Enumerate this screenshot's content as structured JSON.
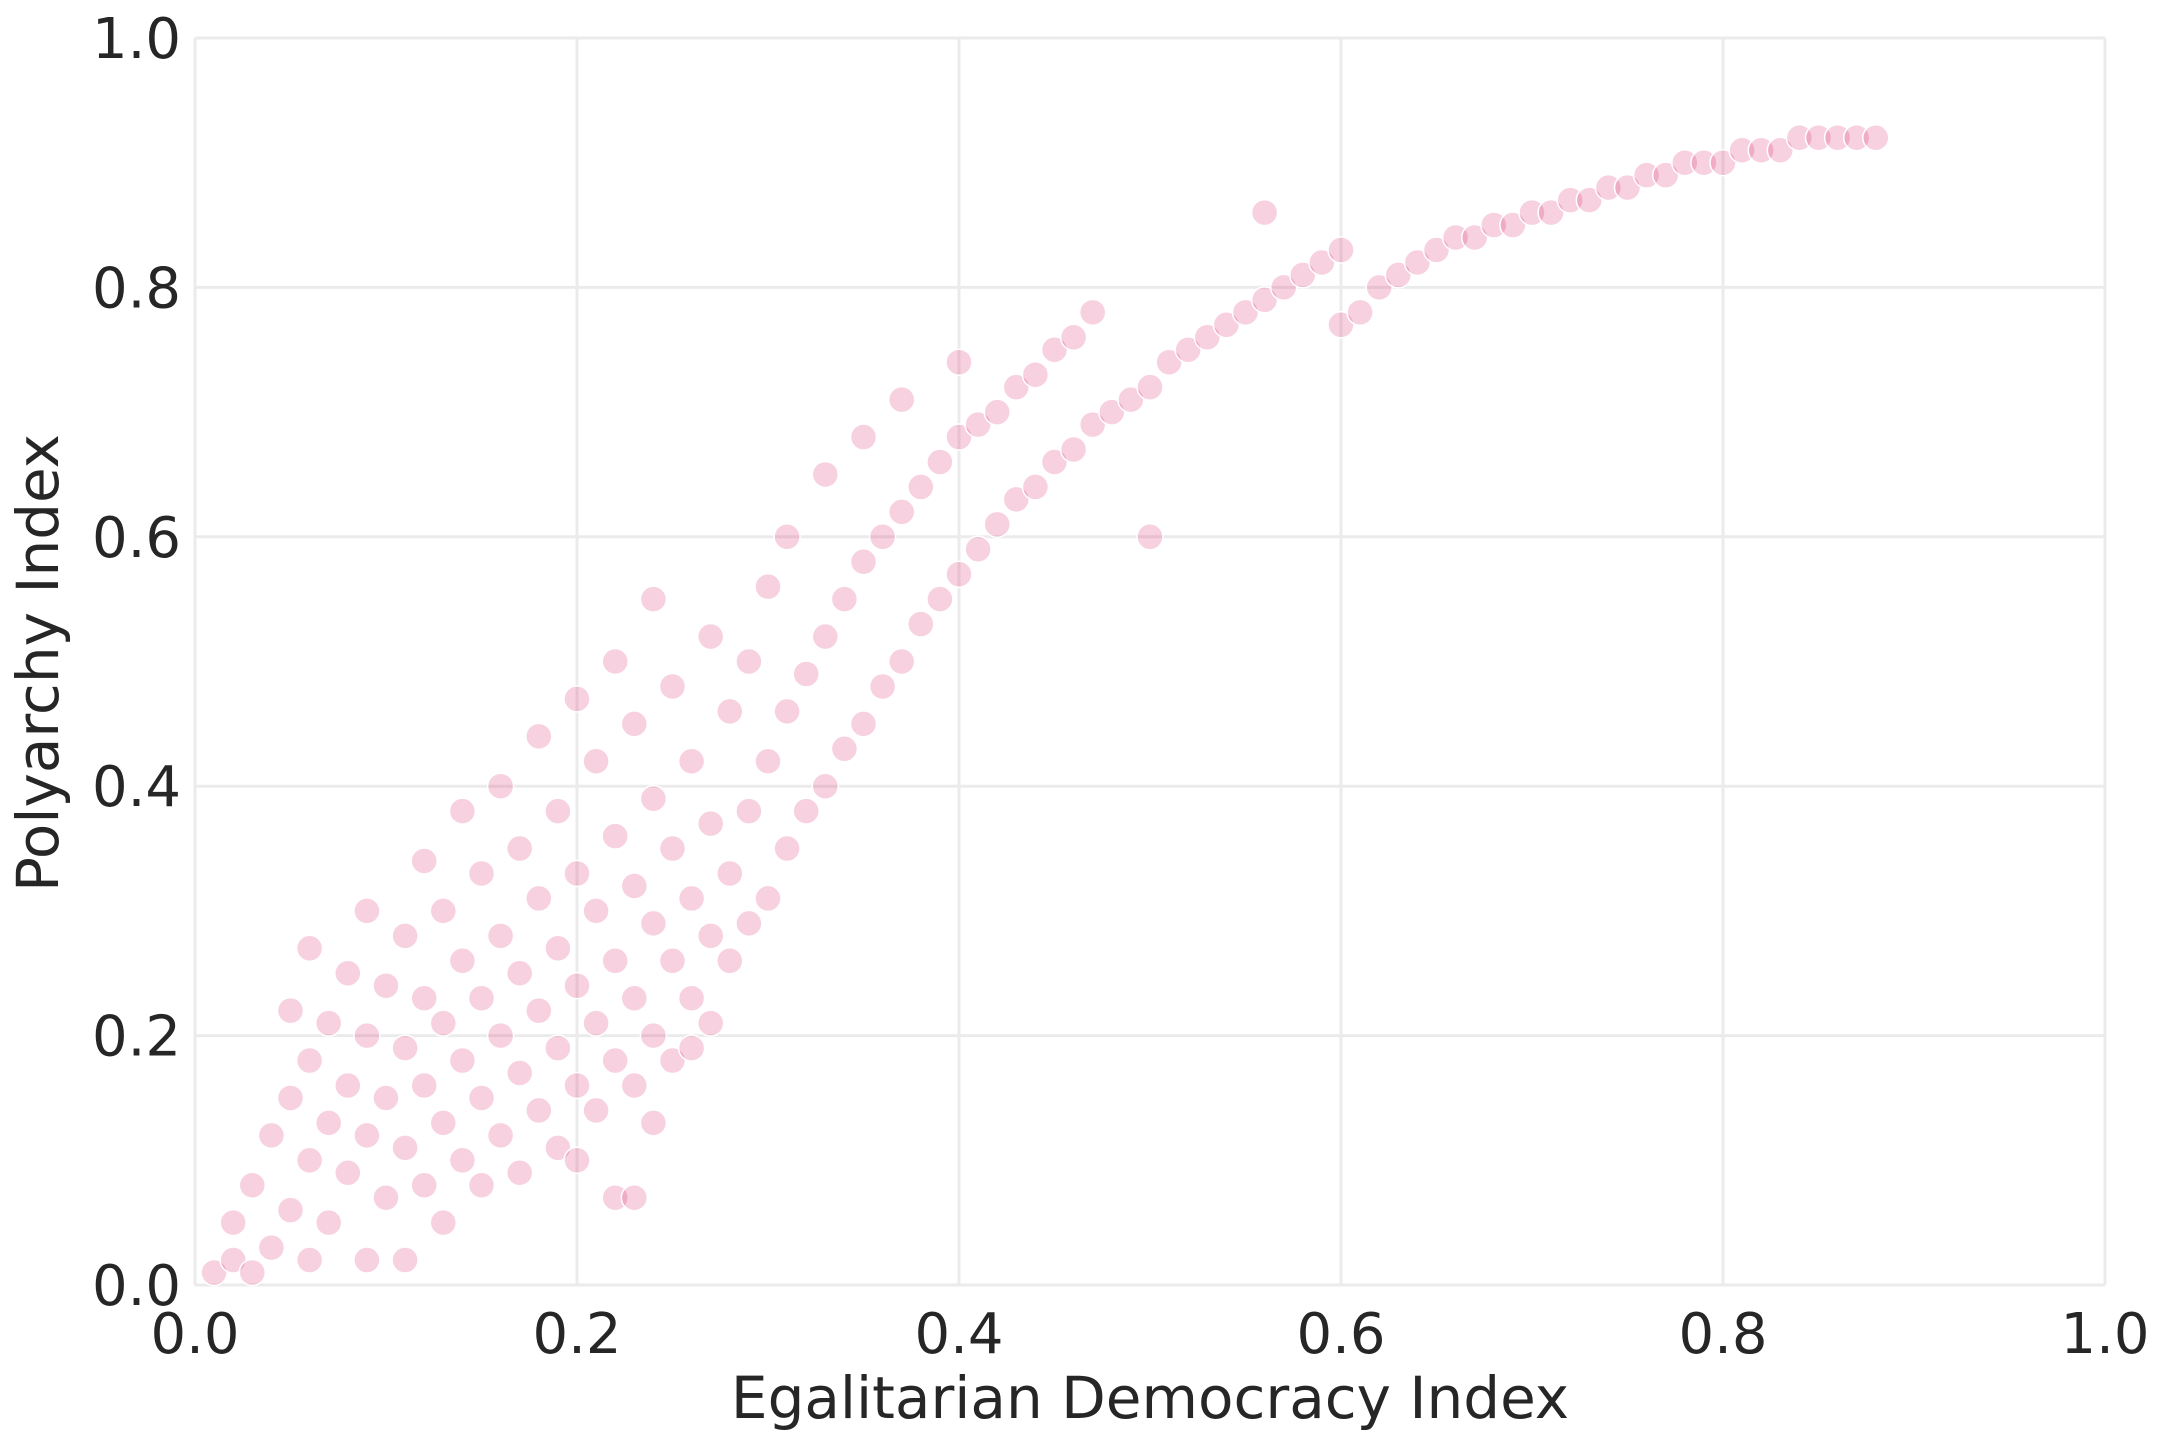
{
  "chart_data": {
    "type": "scatter",
    "title": "",
    "xlabel": "Egalitarian Democracy Index",
    "ylabel": "Polyarchy Index",
    "xlim": [
      0.0,
      1.0
    ],
    "ylim": [
      0.0,
      1.0
    ],
    "xticks": [
      "0.0",
      "0.2",
      "0.4",
      "0.6",
      "0.8",
      "1.0"
    ],
    "yticks": [
      "0.0",
      "0.2",
      "0.4",
      "0.6",
      "0.8",
      "1.0"
    ],
    "grid": true,
    "legend": "none",
    "point_color": "#d81b60",
    "point_opacity": 0.2,
    "series": [
      {
        "points": [
          [
            0.01,
            0.01
          ],
          [
            0.02,
            0.02
          ],
          [
            0.02,
            0.05
          ],
          [
            0.03,
            0.01
          ],
          [
            0.03,
            0.08
          ],
          [
            0.04,
            0.03
          ],
          [
            0.04,
            0.12
          ],
          [
            0.05,
            0.06
          ],
          [
            0.05,
            0.15
          ],
          [
            0.05,
            0.22
          ],
          [
            0.06,
            0.02
          ],
          [
            0.06,
            0.1
          ],
          [
            0.06,
            0.18
          ],
          [
            0.06,
            0.27
          ],
          [
            0.07,
            0.05
          ],
          [
            0.07,
            0.13
          ],
          [
            0.07,
            0.21
          ],
          [
            0.08,
            0.09
          ],
          [
            0.08,
            0.16
          ],
          [
            0.08,
            0.25
          ],
          [
            0.09,
            0.02
          ],
          [
            0.09,
            0.12
          ],
          [
            0.09,
            0.2
          ],
          [
            0.09,
            0.3
          ],
          [
            0.1,
            0.07
          ],
          [
            0.1,
            0.15
          ],
          [
            0.1,
            0.24
          ],
          [
            0.11,
            0.02
          ],
          [
            0.11,
            0.11
          ],
          [
            0.11,
            0.19
          ],
          [
            0.11,
            0.28
          ],
          [
            0.12,
            0.08
          ],
          [
            0.12,
            0.16
          ],
          [
            0.12,
            0.23
          ],
          [
            0.12,
            0.34
          ],
          [
            0.13,
            0.05
          ],
          [
            0.13,
            0.13
          ],
          [
            0.13,
            0.21
          ],
          [
            0.13,
            0.3
          ],
          [
            0.14,
            0.1
          ],
          [
            0.14,
            0.18
          ],
          [
            0.14,
            0.26
          ],
          [
            0.14,
            0.38
          ],
          [
            0.15,
            0.08
          ],
          [
            0.15,
            0.15
          ],
          [
            0.15,
            0.23
          ],
          [
            0.15,
            0.33
          ],
          [
            0.16,
            0.12
          ],
          [
            0.16,
            0.2
          ],
          [
            0.16,
            0.28
          ],
          [
            0.16,
            0.4
          ],
          [
            0.17,
            0.09
          ],
          [
            0.17,
            0.17
          ],
          [
            0.17,
            0.25
          ],
          [
            0.17,
            0.35
          ],
          [
            0.18,
            0.14
          ],
          [
            0.18,
            0.22
          ],
          [
            0.18,
            0.31
          ],
          [
            0.18,
            0.44
          ],
          [
            0.19,
            0.11
          ],
          [
            0.19,
            0.19
          ],
          [
            0.19,
            0.27
          ],
          [
            0.19,
            0.38
          ],
          [
            0.2,
            0.1
          ],
          [
            0.2,
            0.16
          ],
          [
            0.2,
            0.24
          ],
          [
            0.2,
            0.33
          ],
          [
            0.2,
            0.47
          ],
          [
            0.21,
            0.14
          ],
          [
            0.21,
            0.21
          ],
          [
            0.21,
            0.3
          ],
          [
            0.21,
            0.42
          ],
          [
            0.22,
            0.07
          ],
          [
            0.22,
            0.18
          ],
          [
            0.22,
            0.26
          ],
          [
            0.22,
            0.36
          ],
          [
            0.22,
            0.5
          ],
          [
            0.23,
            0.07
          ],
          [
            0.23,
            0.16
          ],
          [
            0.23,
            0.23
          ],
          [
            0.23,
            0.32
          ],
          [
            0.23,
            0.45
          ],
          [
            0.24,
            0.13
          ],
          [
            0.24,
            0.2
          ],
          [
            0.24,
            0.29
          ],
          [
            0.24,
            0.39
          ],
          [
            0.24,
            0.55
          ],
          [
            0.25,
            0.18
          ],
          [
            0.25,
            0.26
          ],
          [
            0.25,
            0.35
          ],
          [
            0.25,
            0.48
          ],
          [
            0.26,
            0.19
          ],
          [
            0.26,
            0.23
          ],
          [
            0.26,
            0.31
          ],
          [
            0.26,
            0.42
          ],
          [
            0.27,
            0.21
          ],
          [
            0.27,
            0.28
          ],
          [
            0.27,
            0.37
          ],
          [
            0.27,
            0.52
          ],
          [
            0.28,
            0.26
          ],
          [
            0.28,
            0.33
          ],
          [
            0.28,
            0.46
          ],
          [
            0.29,
            0.29
          ],
          [
            0.29,
            0.38
          ],
          [
            0.29,
            0.5
          ],
          [
            0.3,
            0.31
          ],
          [
            0.3,
            0.42
          ],
          [
            0.3,
            0.56
          ],
          [
            0.31,
            0.35
          ],
          [
            0.31,
            0.46
          ],
          [
            0.31,
            0.6
          ],
          [
            0.32,
            0.38
          ],
          [
            0.32,
            0.49
          ],
          [
            0.33,
            0.4
          ],
          [
            0.33,
            0.52
          ],
          [
            0.33,
            0.65
          ],
          [
            0.34,
            0.43
          ],
          [
            0.34,
            0.55
          ],
          [
            0.35,
            0.45
          ],
          [
            0.35,
            0.58
          ],
          [
            0.35,
            0.68
          ],
          [
            0.36,
            0.48
          ],
          [
            0.36,
            0.6
          ],
          [
            0.37,
            0.5
          ],
          [
            0.37,
            0.62
          ],
          [
            0.37,
            0.71
          ],
          [
            0.38,
            0.53
          ],
          [
            0.38,
            0.64
          ],
          [
            0.39,
            0.55
          ],
          [
            0.39,
            0.66
          ],
          [
            0.4,
            0.57
          ],
          [
            0.4,
            0.68
          ],
          [
            0.4,
            0.74
          ],
          [
            0.41,
            0.59
          ],
          [
            0.41,
            0.69
          ],
          [
            0.42,
            0.61
          ],
          [
            0.42,
            0.7
          ],
          [
            0.43,
            0.63
          ],
          [
            0.43,
            0.72
          ],
          [
            0.44,
            0.64
          ],
          [
            0.44,
            0.73
          ],
          [
            0.45,
            0.66
          ],
          [
            0.45,
            0.75
          ],
          [
            0.46,
            0.67
          ],
          [
            0.46,
            0.76
          ],
          [
            0.47,
            0.69
          ],
          [
            0.47,
            0.78
          ],
          [
            0.48,
            0.7
          ],
          [
            0.49,
            0.71
          ],
          [
            0.5,
            0.72
          ],
          [
            0.5,
            0.6
          ],
          [
            0.51,
            0.74
          ],
          [
            0.52,
            0.75
          ],
          [
            0.53,
            0.76
          ],
          [
            0.54,
            0.77
          ],
          [
            0.55,
            0.78
          ],
          [
            0.56,
            0.79
          ],
          [
            0.56,
            0.86
          ],
          [
            0.57,
            0.8
          ],
          [
            0.58,
            0.81
          ],
          [
            0.59,
            0.82
          ],
          [
            0.6,
            0.77
          ],
          [
            0.6,
            0.83
          ],
          [
            0.61,
            0.78
          ],
          [
            0.62,
            0.8
          ],
          [
            0.63,
            0.81
          ],
          [
            0.64,
            0.82
          ],
          [
            0.65,
            0.83
          ],
          [
            0.66,
            0.84
          ],
          [
            0.67,
            0.84
          ],
          [
            0.68,
            0.85
          ],
          [
            0.69,
            0.85
          ],
          [
            0.7,
            0.86
          ],
          [
            0.71,
            0.86
          ],
          [
            0.72,
            0.87
          ],
          [
            0.73,
            0.87
          ],
          [
            0.74,
            0.88
          ],
          [
            0.75,
            0.88
          ],
          [
            0.76,
            0.89
          ],
          [
            0.77,
            0.89
          ],
          [
            0.78,
            0.9
          ],
          [
            0.79,
            0.9
          ],
          [
            0.8,
            0.9
          ],
          [
            0.81,
            0.91
          ],
          [
            0.82,
            0.91
          ],
          [
            0.83,
            0.91
          ],
          [
            0.84,
            0.92
          ],
          [
            0.85,
            0.92
          ],
          [
            0.86,
            0.92
          ],
          [
            0.87,
            0.92
          ],
          [
            0.88,
            0.92
          ]
        ]
      }
    ]
  }
}
